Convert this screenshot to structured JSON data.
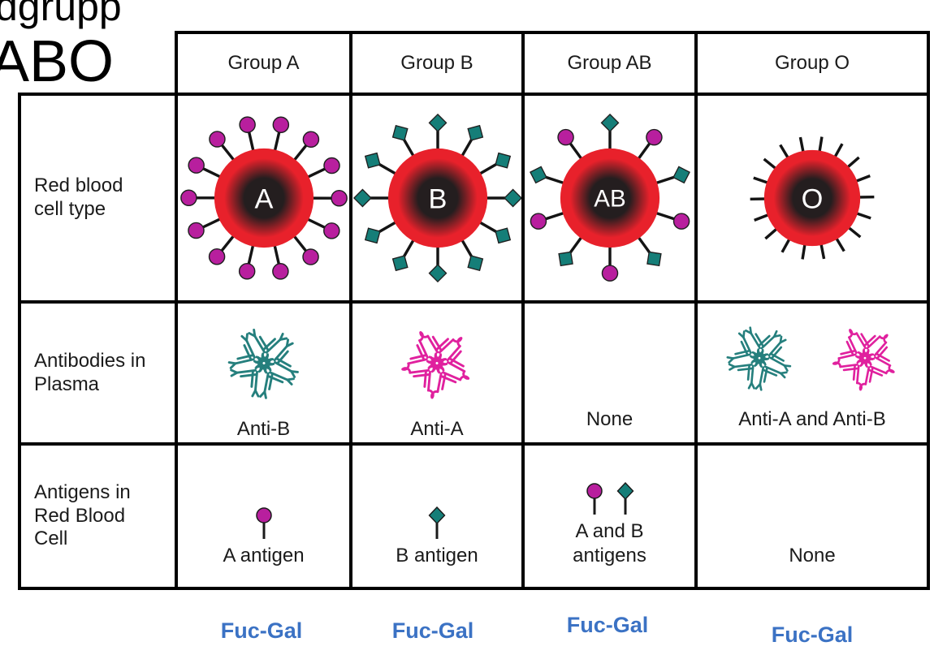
{
  "page": {
    "top_left_partial_title": "dgrupp",
    "heading": "ABO"
  },
  "colors": {
    "border": "#000000",
    "text": "#1b1b1b",
    "rbc_red": "#e8212b",
    "rbc_core": "#241e1f",
    "spike": "#141414",
    "antigen_a_magenta": "#b81f9e",
    "antigen_b_teal": "#157e78",
    "antibody_anti_b_teal": "#257f7d",
    "antibody_anti_a_magenta": "#e0219e",
    "fucgal_blue": "#3b72c4",
    "rbc_label_white": "#ffffff"
  },
  "table": {
    "column_headers": [
      "Group A",
      "Group B",
      "Group AB",
      "Group O"
    ],
    "row_headers": [
      "Red blood cell type",
      "Antibodies in Plasma",
      "Antigens in Red Blood Cell"
    ],
    "rbc_row": [
      {
        "label": "A",
        "antigen_tip": "circle",
        "spikes": 14
      },
      {
        "label": "B",
        "antigen_tip": "diamond",
        "spikes": 12
      },
      {
        "label": "AB",
        "antigen_tip": "alternate",
        "spikes": 10
      },
      {
        "label": "O",
        "antigen_tip": "none",
        "spikes": 18
      }
    ],
    "antibody_row": [
      {
        "label": "Anti-B",
        "clusters": [
          "anti_b"
        ]
      },
      {
        "label": "Anti-A",
        "clusters": [
          "anti_a"
        ]
      },
      {
        "label": "None",
        "clusters": []
      },
      {
        "label": "Anti-A and Anti-B",
        "clusters": [
          "anti_b",
          "anti_a"
        ]
      }
    ],
    "antigen_row": [
      {
        "label": "A antigen",
        "icons": [
          "circle"
        ]
      },
      {
        "label": "B antigen",
        "icons": [
          "diamond"
        ]
      },
      {
        "label": "A and B antigens",
        "icons": [
          "circle",
          "diamond"
        ]
      },
      {
        "label": "None",
        "icons": []
      }
    ]
  },
  "footnotes": [
    "Fuc-Gal",
    "Fuc-Gal",
    "Fuc-Gal",
    "Fuc-Gal"
  ]
}
